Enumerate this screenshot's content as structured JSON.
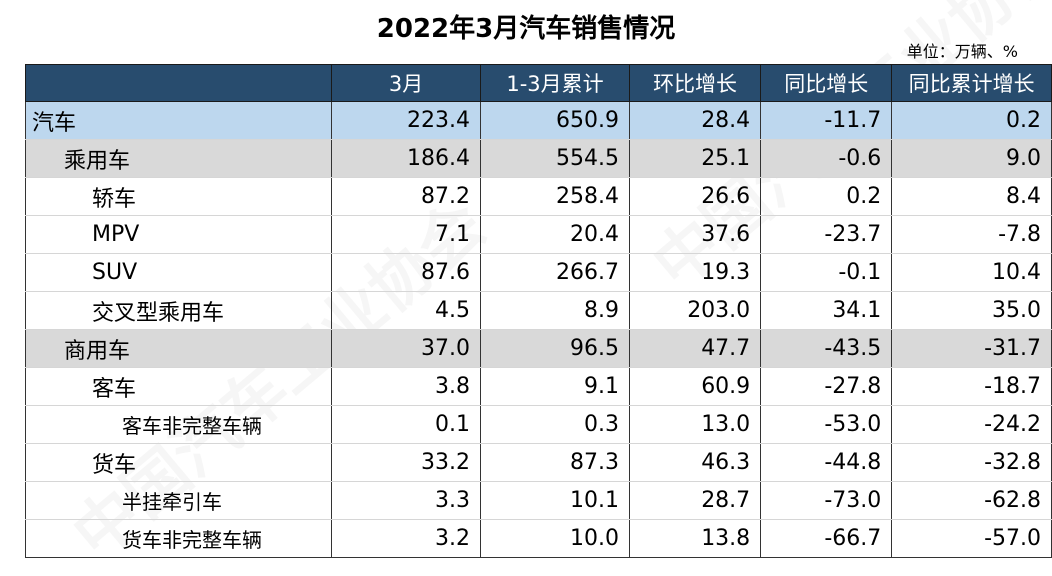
{
  "title": "2022年3月汽车销售情况",
  "unit": "单位：万辆、%",
  "watermark_text": "中国汽车工业协会",
  "columns": [
    "",
    "3月",
    "1-3月累计",
    "环比增长",
    "同比增长",
    "同比累计增长"
  ],
  "rows": [
    {
      "level": "lvl0",
      "name": "汽车",
      "v": [
        "223.4",
        "650.9",
        "28.4",
        "-11.7",
        "0.2"
      ]
    },
    {
      "level": "lvl1",
      "name": "乘用车",
      "v": [
        "186.4",
        "554.5",
        "25.1",
        "-0.6",
        "9.0"
      ]
    },
    {
      "level": "lvl2",
      "name": "轿车",
      "v": [
        "87.2",
        "258.4",
        "26.6",
        "0.2",
        "8.4"
      ]
    },
    {
      "level": "lvl2",
      "name": "MPV",
      "v": [
        "7.1",
        "20.4",
        "37.6",
        "-23.7",
        "-7.8"
      ]
    },
    {
      "level": "lvl2",
      "name": "SUV",
      "v": [
        "87.6",
        "266.7",
        "19.3",
        "-0.1",
        "10.4"
      ]
    },
    {
      "level": "lvl2",
      "name": "交叉型乘用车",
      "v": [
        "4.5",
        "8.9",
        "203.0",
        "34.1",
        "35.0"
      ]
    },
    {
      "level": "lvl1",
      "name": "商用车",
      "v": [
        "37.0",
        "96.5",
        "47.7",
        "-43.5",
        "-31.7"
      ]
    },
    {
      "level": "lvl1b",
      "name": "客车",
      "v": [
        "3.8",
        "9.1",
        "60.9",
        "-27.8",
        "-18.7"
      ]
    },
    {
      "level": "lvl3",
      "name": "客车非完整车辆",
      "v": [
        "0.1",
        "0.3",
        "13.0",
        "-53.0",
        "-24.2"
      ]
    },
    {
      "level": "lvl1b",
      "name": "货车",
      "v": [
        "33.2",
        "87.3",
        "46.3",
        "-44.8",
        "-32.8"
      ]
    },
    {
      "level": "lvl3",
      "name": "半挂牵引车",
      "v": [
        "3.3",
        "10.1",
        "28.7",
        "-73.0",
        "-62.8"
      ]
    },
    {
      "level": "lvl3",
      "name": "货车非完整车辆",
      "v": [
        "3.2",
        "10.0",
        "13.8",
        "-66.7",
        "-57.0"
      ]
    }
  ],
  "colors": {
    "header_bg": "#284c6e",
    "total_row_bg": "#bdd7ee",
    "category_row_bg": "#d9d9d9"
  }
}
